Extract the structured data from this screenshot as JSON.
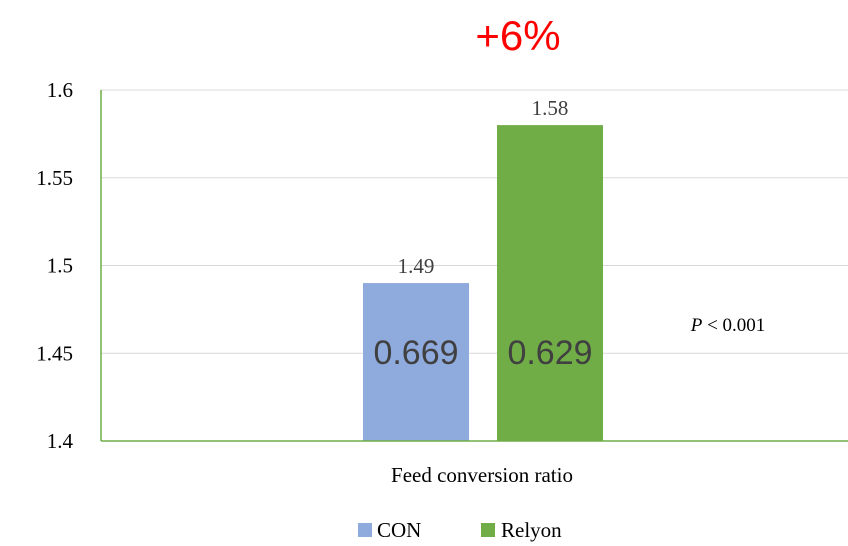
{
  "chart_data": {
    "type": "bar",
    "categories": [
      "Feed conversion ratio"
    ],
    "series": [
      {
        "name": "CON",
        "values": [
          1.49
        ],
        "color": "#8FAADC",
        "inner_label": "0.669"
      },
      {
        "name": "Relyon",
        "values": [
          1.58
        ],
        "color": "#70AD47",
        "inner_label": "0.629"
      }
    ],
    "data_labels": [
      "1.49",
      "1.58"
    ],
    "xlabel": "Feed conversion ratio",
    "ylim": [
      1.4,
      1.6
    ],
    "yticks": [
      "1.4",
      "1.45",
      "1.5",
      "1.55",
      "1.6"
    ],
    "grid": true,
    "axis_color": "#70AD47",
    "legend_position": "bottom",
    "annotation": {
      "text": "+6%",
      "color": "#FF0000"
    },
    "p_value": {
      "italic": "P",
      "rest": " < 0.001"
    }
  }
}
